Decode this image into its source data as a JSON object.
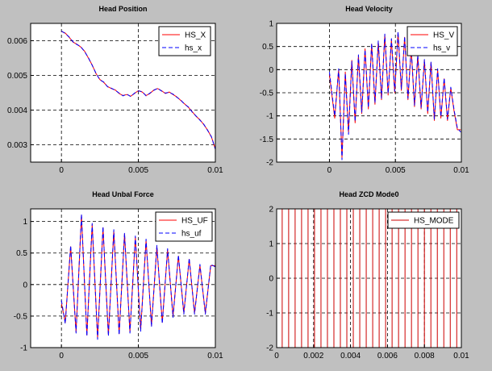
{
  "chart_data": [
    {
      "type": "line",
      "title": "Head Position",
      "xlim": [
        -0.002,
        0.01
      ],
      "ylim": [
        0.0025,
        0.0065
      ],
      "xticks": [
        {
          "v": 0,
          "label": "0"
        },
        {
          "v": 0.005,
          "label": "0.005"
        },
        {
          "v": 0.01,
          "label": "0.01"
        }
      ],
      "yticks": [
        {
          "v": 0.003,
          "label": "0.003"
        },
        {
          "v": 0.004,
          "label": "0.004"
        },
        {
          "v": 0.005,
          "label": "0.005"
        },
        {
          "v": 0.006,
          "label": "0.006"
        }
      ],
      "grid": true,
      "legend_position": "top-right",
      "series": [
        {
          "name": "HS_X",
          "color": "#ff0000",
          "dash": false,
          "x": [
            0,
            0.00025,
            0.0005,
            0.00075,
            0.001,
            0.00125,
            0.0015,
            0.00175,
            0.002,
            0.00225,
            0.0025,
            0.00275,
            0.003,
            0.00325,
            0.0035,
            0.00375,
            0.004,
            0.00425,
            0.0045,
            0.00475,
            0.005,
            0.00525,
            0.0055,
            0.00575,
            0.006,
            0.00625,
            0.0065,
            0.00675,
            0.007,
            0.00725,
            0.0075,
            0.00775,
            0.008,
            0.00825,
            0.0085,
            0.00875,
            0.009,
            0.00925,
            0.0095,
            0.00975,
            0.01
          ],
          "y": [
            0.00627,
            0.00622,
            0.0061,
            0.00596,
            0.0059,
            0.00582,
            0.0057,
            0.0055,
            0.0053,
            0.00505,
            0.00488,
            0.0048,
            0.00468,
            0.00462,
            0.00458,
            0.00448,
            0.00442,
            0.00445,
            0.0044,
            0.00448,
            0.00456,
            0.00452,
            0.00442,
            0.00448,
            0.00458,
            0.00462,
            0.00456,
            0.00448,
            0.00452,
            0.00445,
            0.00438,
            0.00428,
            0.00418,
            0.00408,
            0.00395,
            0.00382,
            0.00372,
            0.00358,
            0.00342,
            0.00322,
            0.00288
          ]
        },
        {
          "name": "hs_x",
          "color": "#0000ff",
          "dash": true,
          "x": [
            0,
            0.00025,
            0.0005,
            0.00075,
            0.001,
            0.00125,
            0.0015,
            0.00175,
            0.002,
            0.00225,
            0.0025,
            0.00275,
            0.003,
            0.00325,
            0.0035,
            0.00375,
            0.004,
            0.00425,
            0.0045,
            0.00475,
            0.005,
            0.00525,
            0.0055,
            0.00575,
            0.006,
            0.00625,
            0.0065,
            0.00675,
            0.007,
            0.00725,
            0.0075,
            0.00775,
            0.008,
            0.00825,
            0.0085,
            0.00875,
            0.009,
            0.00925,
            0.0095,
            0.00975,
            0.01
          ],
          "y": [
            0.00628,
            0.00621,
            0.00611,
            0.00597,
            0.00589,
            0.00583,
            0.00569,
            0.00551,
            0.00529,
            0.00506,
            0.00487,
            0.00481,
            0.00467,
            0.00463,
            0.00457,
            0.00449,
            0.00441,
            0.00446,
            0.00439,
            0.00449,
            0.00455,
            0.00453,
            0.00441,
            0.00449,
            0.00457,
            0.00463,
            0.00455,
            0.00449,
            0.00451,
            0.00446,
            0.00437,
            0.00429,
            0.00417,
            0.00409,
            0.00394,
            0.00383,
            0.00371,
            0.00359,
            0.00341,
            0.00323,
            0.00287
          ]
        }
      ]
    },
    {
      "type": "line",
      "title": "Head Velocity",
      "xlim": [
        -0.004,
        0.01
      ],
      "ylim": [
        -2,
        1
      ],
      "xticks": [
        {
          "v": 0,
          "label": "0"
        },
        {
          "v": 0.005,
          "label": "0.005"
        },
        {
          "v": 0.01,
          "label": "0.01"
        }
      ],
      "yticks": [
        {
          "v": -2,
          "label": "-2"
        },
        {
          "v": -1.5,
          "label": "-1.5"
        },
        {
          "v": -1,
          "label": "-1"
        },
        {
          "v": -0.5,
          "label": "-0.5"
        },
        {
          "v": 0,
          "label": "0"
        },
        {
          "v": 0.5,
          "label": "0.5"
        },
        {
          "v": 1,
          "label": "1"
        }
      ],
      "grid": true,
      "legend_position": "top-right",
      "series": [
        {
          "name": "HS_V",
          "color": "#ff0000",
          "dash": false,
          "x": [
            0,
            0.0004,
            0.0007,
            0.00095,
            0.0012,
            0.00145,
            0.0017,
            0.00195,
            0.0022,
            0.00245,
            0.0027,
            0.00295,
            0.0032,
            0.00345,
            0.0037,
            0.00395,
            0.0042,
            0.00445,
            0.0047,
            0.00495,
            0.0052,
            0.00545,
            0.0057,
            0.00595,
            0.0062,
            0.00645,
            0.0067,
            0.00695,
            0.0072,
            0.00745,
            0.0077,
            0.00795,
            0.0082,
            0.00845,
            0.0087,
            0.00895,
            0.0092,
            0.00945,
            0.0097,
            0.00995
          ],
          "y": [
            -0.1,
            -1.05,
            0.0,
            -1.9,
            -0.05,
            -1.35,
            0.2,
            -1.15,
            0.3,
            -0.95,
            0.45,
            -0.85,
            0.55,
            -0.75,
            0.6,
            -0.65,
            0.75,
            -0.55,
            0.65,
            -0.5,
            0.8,
            -0.45,
            0.7,
            -0.65,
            0.45,
            -0.8,
            0.3,
            -0.85,
            0.2,
            -0.95,
            0.15,
            -1.1,
            0.0,
            -1.05,
            -0.2,
            -1.1,
            -0.4,
            -0.9,
            -1.3,
            -1.3
          ]
        },
        {
          "name": "hs_v",
          "color": "#0000ff",
          "dash": true,
          "x": [
            0,
            0.0004,
            0.0007,
            0.00095,
            0.0012,
            0.00145,
            0.0017,
            0.00195,
            0.0022,
            0.00245,
            0.0027,
            0.00295,
            0.0032,
            0.00345,
            0.0037,
            0.00395,
            0.0042,
            0.00445,
            0.0047,
            0.00495,
            0.0052,
            0.00545,
            0.0057,
            0.00595,
            0.0062,
            0.00645,
            0.0067,
            0.00695,
            0.0072,
            0.00745,
            0.0077,
            0.00795,
            0.0082,
            0.00845,
            0.0087,
            0.00895,
            0.0092,
            0.00945,
            0.0097,
            0.00995
          ],
          "y": [
            -0.05,
            -1.0,
            0.02,
            -1.95,
            -0.08,
            -1.4,
            0.18,
            -1.12,
            0.32,
            -0.92,
            0.43,
            -0.82,
            0.57,
            -0.72,
            0.62,
            -0.62,
            0.77,
            -0.52,
            0.67,
            -0.47,
            0.82,
            -0.42,
            0.72,
            -0.62,
            0.47,
            -0.77,
            0.32,
            -0.82,
            0.22,
            -0.92,
            0.17,
            -1.07,
            0.02,
            -1.02,
            -0.18,
            -1.07,
            -0.38,
            -0.87,
            -1.27,
            -1.35
          ]
        }
      ]
    },
    {
      "type": "line",
      "title": "Head Unbal Force",
      "xlim": [
        -0.002,
        0.01
      ],
      "ylim": [
        -1,
        1.2
      ],
      "xticks": [
        {
          "v": 0,
          "label": "0"
        },
        {
          "v": 0.005,
          "label": "0.005"
        },
        {
          "v": 0.01,
          "label": "0.01"
        }
      ],
      "yticks": [
        {
          "v": -1,
          "label": "-1"
        },
        {
          "v": -0.5,
          "label": "-0.5"
        },
        {
          "v": 0,
          "label": "0"
        },
        {
          "v": 0.5,
          "label": "0.5"
        },
        {
          "v": 1,
          "label": "1"
        }
      ],
      "grid": true,
      "legend_position": "top-right",
      "series": [
        {
          "name": "HS_UF",
          "color": "#ff0000",
          "dash": false,
          "x": [
            0,
            0.00025,
            0.0006,
            0.00095,
            0.0013,
            0.00165,
            0.002,
            0.00235,
            0.0027,
            0.00305,
            0.0034,
            0.00375,
            0.0041,
            0.00445,
            0.0048,
            0.00515,
            0.0055,
            0.00585,
            0.0062,
            0.00655,
            0.0069,
            0.00725,
            0.0076,
            0.00795,
            0.0083,
            0.00865,
            0.009,
            0.00935,
            0.0097,
            0.01
          ],
          "y": [
            -0.3,
            -0.6,
            0.6,
            -0.75,
            1.1,
            -0.8,
            0.95,
            -0.85,
            0.9,
            -0.8,
            0.85,
            -0.78,
            0.8,
            -0.75,
            0.75,
            -0.72,
            0.7,
            -0.65,
            0.6,
            -0.6,
            0.55,
            -0.5,
            0.45,
            -0.45,
            0.4,
            -0.45,
            0.3,
            -0.45,
            0.3,
            0.3
          ]
        },
        {
          "name": "hs_uf",
          "color": "#0000ff",
          "dash": true,
          "x": [
            0,
            0.00025,
            0.0006,
            0.00095,
            0.0013,
            0.00165,
            0.002,
            0.00235,
            0.0027,
            0.00305,
            0.0034,
            0.00375,
            0.0041,
            0.00445,
            0.0048,
            0.00515,
            0.0055,
            0.00585,
            0.0062,
            0.00655,
            0.0069,
            0.00725,
            0.0076,
            0.00795,
            0.0083,
            0.00865,
            0.009,
            0.00935,
            0.0097,
            0.01
          ],
          "y": [
            -0.25,
            -0.62,
            0.62,
            -0.77,
            1.12,
            -0.82,
            0.97,
            -0.87,
            0.92,
            -0.82,
            0.87,
            -0.8,
            0.82,
            -0.77,
            0.77,
            -0.74,
            0.72,
            -0.67,
            0.62,
            -0.62,
            0.57,
            -0.52,
            0.47,
            -0.47,
            0.42,
            -0.47,
            0.32,
            -0.47,
            0.32,
            0.28
          ]
        }
      ]
    },
    {
      "type": "line",
      "title": "Head ZCD Mode0",
      "xlim": [
        0,
        0.01
      ],
      "ylim": [
        -2,
        2
      ],
      "xticks": [
        {
          "v": 0,
          "label": "0"
        },
        {
          "v": 0.002,
          "label": "0.002"
        },
        {
          "v": 0.004,
          "label": "0.004"
        },
        {
          "v": 0.006,
          "label": "0.006"
        },
        {
          "v": 0.008,
          "label": "0.008"
        },
        {
          "v": 0.01,
          "label": "0.01"
        }
      ],
      "yticks": [
        {
          "v": -2,
          "label": "-2"
        },
        {
          "v": -1,
          "label": "-1"
        },
        {
          "v": 0,
          "label": "0"
        },
        {
          "v": 1,
          "label": "1"
        },
        {
          "v": 2,
          "label": "2"
        }
      ],
      "grid": true,
      "legend_position": "top-right",
      "series": [
        {
          "name": "HS_MODE",
          "color": "#cc0000",
          "dash": false,
          "x": [
            0.0003,
            0.00065,
            0.001,
            0.00135,
            0.0017,
            0.00205,
            0.0024,
            0.00275,
            0.0031,
            0.00345,
            0.0038,
            0.00415,
            0.0045,
            0.00485,
            0.0052,
            0.00555,
            0.0059,
            0.00625,
            0.0066,
            0.00695,
            0.0073,
            0.00765,
            0.008,
            0.00835,
            0.0087,
            0.00905,
            0.0094,
            0.00975
          ],
          "y": [
            2,
            2,
            2,
            2,
            2,
            2,
            2,
            2,
            2,
            2,
            2,
            2,
            2,
            2,
            2,
            2,
            2,
            2,
            2,
            2,
            2,
            2,
            2,
            2,
            2,
            2,
            2,
            2
          ]
        }
      ]
    }
  ]
}
